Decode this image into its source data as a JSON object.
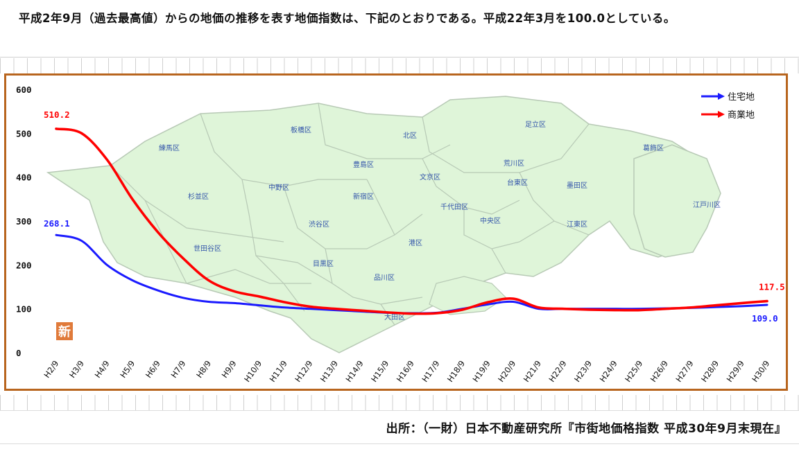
{
  "intro_text": "　平成2年9月（過去最高値）からの地価の推移を表す地価指数は、下記のとおりである。平成22年3月を100.0としている。",
  "source_text": "出所：（一財）日本不動産研究所『市街地価格指数 平成30年9月末現在』",
  "map": {
    "badge": "新",
    "wards": [
      "足立区",
      "北区",
      "板橋区",
      "練馬区",
      "葛飾区",
      "荒川区",
      "豊島区",
      "文京区",
      "台東区",
      "墨田区",
      "中野区",
      "杉並区",
      "新宿区",
      "江戸川区",
      "千代田区",
      "中央区",
      "渋谷区",
      "港区",
      "江東区",
      "世田谷区",
      "目黒区",
      "品川区",
      "大田区"
    ]
  },
  "colors": {
    "residential": "#1a1aff",
    "commercial": "#ff0000",
    "map_fill": "#dff5d9",
    "map_stroke": "#b7c9b5",
    "frame": "#b8651e"
  },
  "chart_data": {
    "type": "line",
    "title": "",
    "xlabel": "",
    "ylabel": "",
    "ylim": [
      0,
      600
    ],
    "yticks": [
      "0",
      "100",
      "200",
      "300",
      "400",
      "500",
      "600"
    ],
    "x": [
      "H2/9",
      "H3/9",
      "H4/9",
      "H5/9",
      "H6/9",
      "H7/9",
      "H8/9",
      "H9/9",
      "H10/9",
      "H11/9",
      "H12/9",
      "H13/9",
      "H14/9",
      "H15/9",
      "H16/9",
      "H17/9",
      "H18/9",
      "H19/9",
      "H20/9",
      "H21/9",
      "H22/9",
      "H23/9",
      "H24/9",
      "H25/9",
      "H26/9",
      "H27/9",
      "H28/9",
      "H29/9",
      "H30/9"
    ],
    "series": [
      {
        "name": "住宅地",
        "values": [
          268.1,
          255,
          200,
          165,
          142,
          125,
          116,
          113,
          108,
          103,
          100,
          97,
          94,
          91,
          90,
          91,
          100,
          110,
          116,
          100,
          100,
          100,
          100,
          100,
          101,
          102,
          104,
          106,
          109.0
        ]
      },
      {
        "name": "商業地",
        "values": [
          510.2,
          500,
          440,
          350,
          275,
          215,
          165,
          140,
          128,
          115,
          105,
          100,
          96,
          92,
          89,
          90,
          98,
          115,
          123,
          103,
          100,
          98,
          97,
          97,
          100,
          103,
          108,
          113,
          117.5
        ]
      }
    ],
    "data_labels": [
      {
        "series": "商業地",
        "text": "510.2"
      },
      {
        "series": "住宅地",
        "text": "268.1"
      },
      {
        "series": "商業地",
        "text": "117.5"
      },
      {
        "series": "住宅地",
        "text": "109.0"
      }
    ],
    "legend_position": "top-right",
    "grid": false
  }
}
